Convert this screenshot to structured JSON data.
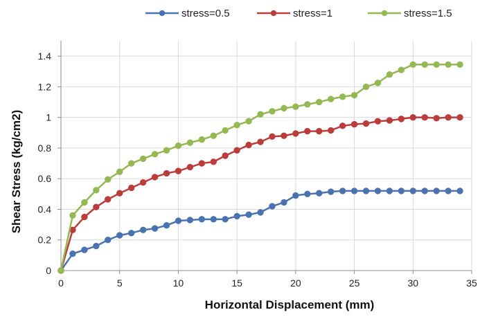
{
  "chart_data": {
    "type": "line",
    "title": "",
    "xlabel": "Horizontal Displacement (mm)",
    "ylabel": "Shear Stress (kg/cm2)",
    "xlim": [
      0,
      35
    ],
    "ylim": [
      0,
      1.5
    ],
    "x_ticks": [
      0,
      5,
      10,
      15,
      20,
      25,
      30,
      35
    ],
    "y_ticks": [
      0,
      0.2,
      0.4,
      0.6,
      0.8,
      1,
      1.2,
      1.4
    ],
    "x_tick_labels": [
      "0",
      "5",
      "10",
      "15",
      "20",
      "25",
      "30",
      "35"
    ],
    "y_tick_labels": [
      "0",
      "0.2",
      "0.4",
      "0.6",
      "0.8",
      "1",
      "1.2",
      "1.4"
    ],
    "grid": true,
    "legend_position": "top",
    "x": [
      0,
      1,
      2,
      3,
      4,
      5,
      6,
      7,
      8,
      9,
      10,
      11,
      12,
      13,
      14,
      15,
      16,
      17,
      18,
      19,
      20,
      21,
      22,
      23,
      24,
      25,
      26,
      27,
      28,
      29,
      30,
      31,
      32,
      33,
      34
    ],
    "series": [
      {
        "name": "stress=0.5",
        "color": "#4a72b0",
        "values": [
          0,
          0.11,
          0.135,
          0.16,
          0.2,
          0.23,
          0.245,
          0.265,
          0.275,
          0.295,
          0.325,
          0.33,
          0.335,
          0.335,
          0.335,
          0.355,
          0.365,
          0.38,
          0.42,
          0.445,
          0.49,
          0.5,
          0.505,
          0.515,
          0.52,
          0.52,
          0.52,
          0.52,
          0.52,
          0.52,
          0.52,
          0.52,
          0.52,
          0.52,
          0.52
        ]
      },
      {
        "name": "stress=1",
        "color": "#bb3d3b",
        "values": [
          0,
          0.265,
          0.35,
          0.415,
          0.465,
          0.505,
          0.54,
          0.575,
          0.61,
          0.635,
          0.65,
          0.675,
          0.7,
          0.71,
          0.75,
          0.785,
          0.82,
          0.84,
          0.875,
          0.88,
          0.895,
          0.91,
          0.91,
          0.915,
          0.945,
          0.955,
          0.96,
          0.975,
          0.98,
          0.99,
          1.0,
          1.0,
          0.995,
          1.0,
          1.0
        ]
      },
      {
        "name": "stress=1.5",
        "color": "#95b853",
        "values": [
          0,
          0.36,
          0.445,
          0.525,
          0.595,
          0.645,
          0.7,
          0.73,
          0.76,
          0.785,
          0.815,
          0.835,
          0.855,
          0.88,
          0.915,
          0.95,
          0.975,
          1.02,
          1.04,
          1.06,
          1.07,
          1.085,
          1.1,
          1.12,
          1.135,
          1.145,
          1.2,
          1.225,
          1.28,
          1.31,
          1.345,
          1.345,
          1.345,
          1.345,
          1.345
        ]
      }
    ]
  }
}
